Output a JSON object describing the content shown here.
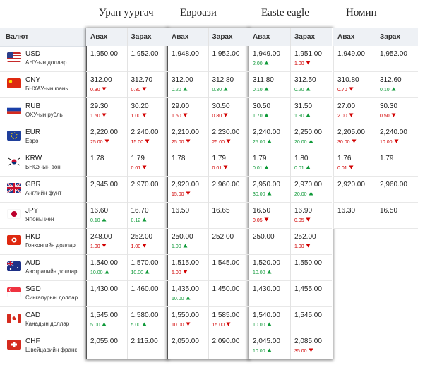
{
  "banks": [
    "Уран уургач",
    "Евроази",
    "Easte eagle",
    "Номин"
  ],
  "header": {
    "currency": "Валют",
    "buy": "Авах",
    "sell": "Зарах"
  },
  "rows": [
    {
      "code": "USD",
      "name": "АНУ-ын доллар",
      "rates": [
        [
          {
            "value": "1,950.00"
          },
          {
            "value": "1,952.00"
          }
        ],
        [
          {
            "value": "1,948.00"
          },
          {
            "value": "1,952.00"
          }
        ],
        [
          {
            "value": "1,949.00",
            "change": "2.00",
            "trend": "up"
          },
          {
            "value": "1,951.00",
            "change": "1.00",
            "trend": "down"
          }
        ],
        [
          {
            "value": "1,949.00"
          },
          {
            "value": "1,952.00"
          }
        ]
      ]
    },
    {
      "code": "CNY",
      "name": "БНХАУ-ын юань",
      "rates": [
        [
          {
            "value": "312.00",
            "change": "0.30",
            "trend": "down"
          },
          {
            "value": "312.70",
            "change": "0.30",
            "trend": "down"
          }
        ],
        [
          {
            "value": "312.00",
            "change": "0.20",
            "trend": "up"
          },
          {
            "value": "312.80",
            "change": "0.30",
            "trend": "up"
          }
        ],
        [
          {
            "value": "311.80",
            "change": "0.10",
            "trend": "up"
          },
          {
            "value": "312.50",
            "change": "0.20",
            "trend": "up"
          }
        ],
        [
          {
            "value": "310.80",
            "change": "0.70",
            "trend": "down"
          },
          {
            "value": "312.60",
            "change": "0.10",
            "trend": "up"
          }
        ]
      ]
    },
    {
      "code": "RUB",
      "name": "ОХУ-ын рубль",
      "rates": [
        [
          {
            "value": "29.30",
            "change": "1.50",
            "trend": "down"
          },
          {
            "value": "30.20",
            "change": "1.00",
            "trend": "down"
          }
        ],
        [
          {
            "value": "29.00",
            "change": "1.50",
            "trend": "down"
          },
          {
            "value": "30.50",
            "change": "0.80",
            "trend": "down"
          }
        ],
        [
          {
            "value": "30.50",
            "change": "1.70",
            "trend": "up"
          },
          {
            "value": "31.50",
            "change": "1.90",
            "trend": "up"
          }
        ],
        [
          {
            "value": "27.00",
            "change": "2.00",
            "trend": "down"
          },
          {
            "value": "30.30",
            "change": "0.50",
            "trend": "down"
          }
        ]
      ]
    },
    {
      "code": "EUR",
      "name": "Евро",
      "rates": [
        [
          {
            "value": "2,220.00",
            "change": "25.00",
            "trend": "down"
          },
          {
            "value": "2,240.00",
            "change": "15.00",
            "trend": "down"
          }
        ],
        [
          {
            "value": "2,210.00",
            "change": "25.00",
            "trend": "down"
          },
          {
            "value": "2,230.00",
            "change": "25.00",
            "trend": "down"
          }
        ],
        [
          {
            "value": "2,240.00",
            "change": "25.00",
            "trend": "up"
          },
          {
            "value": "2,250.00",
            "change": "20.00",
            "trend": "up"
          }
        ],
        [
          {
            "value": "2,205.00",
            "change": "30.00",
            "trend": "down"
          },
          {
            "value": "2,240.00",
            "change": "10.00",
            "trend": "down"
          }
        ]
      ]
    },
    {
      "code": "KRW",
      "name": "БНСУ-ын вон",
      "rates": [
        [
          {
            "value": "1.78"
          },
          {
            "value": "1.79",
            "change": "0.01",
            "trend": "down"
          }
        ],
        [
          {
            "value": "1.78"
          },
          {
            "value": "1.79",
            "change": "0.01",
            "trend": "down"
          }
        ],
        [
          {
            "value": "1.79",
            "change": "0.01",
            "trend": "up"
          },
          {
            "value": "1.80",
            "change": "0.01",
            "trend": "up"
          }
        ],
        [
          {
            "value": "1.76",
            "change": "0.01",
            "trend": "down"
          },
          {
            "value": "1.79"
          }
        ]
      ]
    },
    {
      "code": "GBR",
      "name": "Английн фунт",
      "rates": [
        [
          {
            "value": "2,945.00"
          },
          {
            "value": "2,970.00"
          }
        ],
        [
          {
            "value": "2,920.00",
            "change": "15.00",
            "trend": "down"
          },
          {
            "value": "2,960.00"
          }
        ],
        [
          {
            "value": "2,950.00",
            "change": "30.00",
            "trend": "up"
          },
          {
            "value": "2,970.00",
            "change": "20.00",
            "trend": "up"
          }
        ],
        [
          {
            "value": "2,920.00"
          },
          {
            "value": "2,960.00"
          }
        ]
      ]
    },
    {
      "code": "JPY",
      "name": "Японы иен",
      "rates": [
        [
          {
            "value": "16.60",
            "change": "0.10",
            "trend": "up"
          },
          {
            "value": "16.70",
            "change": "0.12",
            "trend": "up"
          }
        ],
        [
          {
            "value": "16.50"
          },
          {
            "value": "16.65"
          }
        ],
        [
          {
            "value": "16.50",
            "change": "0.05",
            "trend": "down"
          },
          {
            "value": "16.90",
            "change": "0.05",
            "trend": "down"
          }
        ],
        [
          {
            "value": "16.30"
          },
          {
            "value": "16.50"
          }
        ]
      ]
    },
    {
      "code": "HKD",
      "name": "Гонконгийн доллар",
      "rates": [
        [
          {
            "value": "248.00",
            "change": "1.00",
            "trend": "down"
          },
          {
            "value": "252.00",
            "change": "1.00",
            "trend": "down"
          }
        ],
        [
          {
            "value": "250.00",
            "change": "1.00",
            "trend": "up"
          },
          {
            "value": "252.00"
          }
        ],
        [
          {
            "value": "250.00"
          },
          {
            "value": "252.00",
            "change": "1.00",
            "trend": "down"
          }
        ]
      ]
    },
    {
      "code": "AUD",
      "name": "Австралийн доллар",
      "rates": [
        [
          {
            "value": "1,540.00",
            "change": "10.00",
            "trend": "up"
          },
          {
            "value": "1,570.00",
            "change": "10.00",
            "trend": "up"
          }
        ],
        [
          {
            "value": "1,515.00",
            "change": "5.00",
            "trend": "down"
          },
          {
            "value": "1,545.00"
          }
        ],
        [
          {
            "value": "1,520.00",
            "change": "10.00",
            "trend": "up"
          },
          {
            "value": "1,550.00"
          }
        ]
      ]
    },
    {
      "code": "SGD",
      "name": "Сингапурын доллар",
      "rates": [
        [
          {
            "value": "1,430.00"
          },
          {
            "value": "1,460.00"
          }
        ],
        [
          {
            "value": "1,435.00",
            "change": "10.00",
            "trend": "up"
          },
          {
            "value": "1,450.00"
          }
        ],
        [
          {
            "value": "1,430.00"
          },
          {
            "value": "1,455.00"
          }
        ]
      ]
    },
    {
      "code": "CAD",
      "name": "Канадын доллар",
      "rates": [
        [
          {
            "value": "1,545.00",
            "change": "5.00",
            "trend": "up"
          },
          {
            "value": "1,580.00",
            "change": "5.00",
            "trend": "up"
          }
        ],
        [
          {
            "value": "1,550.00",
            "change": "10.00",
            "trend": "down"
          },
          {
            "value": "1,585.00",
            "change": "15.00",
            "trend": "down"
          }
        ],
        [
          {
            "value": "1,540.00",
            "change": "10.00",
            "trend": "up"
          },
          {
            "value": "1,545.00"
          }
        ]
      ]
    },
    {
      "code": "CHF",
      "name": "Швейцарийн франк",
      "rates": [
        [
          {
            "value": "2,055.00"
          },
          {
            "value": "2,115.00"
          }
        ],
        [
          {
            "value": "2,050.00"
          },
          {
            "value": "2,090.00"
          }
        ],
        [
          {
            "value": "2,045.00",
            "change": "10.00",
            "trend": "up"
          },
          {
            "value": "2,085.00",
            "change": "35.00",
            "trend": "down"
          }
        ]
      ]
    }
  ]
}
